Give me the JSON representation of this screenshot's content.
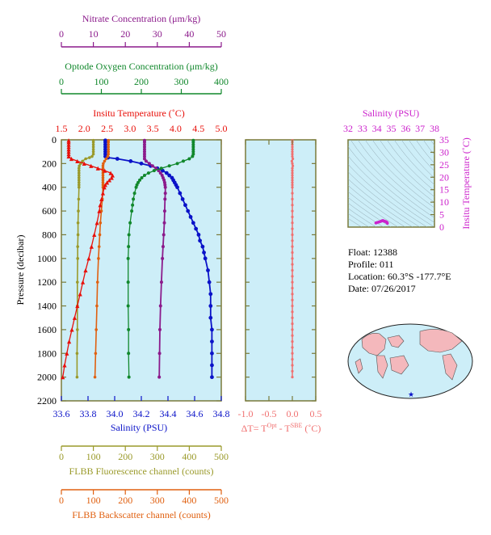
{
  "info": {
    "float": "Float:  12388",
    "profile": "Profile:  011",
    "location": "Location:  60.3°S  -177.7°E",
    "date": "Date:  07/26/2017"
  },
  "colors": {
    "nitrate": "#8b1a8b",
    "oxygen": "#11882c",
    "temperature": "#e8100a",
    "salinity": "#0a12c8",
    "fluorescence": "#9a9a2a",
    "backscatter": "#e06010",
    "salinity_ts": "#cc22cc",
    "delta_t": "#f07070",
    "panel_bg": "#cdeef8",
    "frame": "#7a7a3a"
  },
  "chart_data": [
    {
      "type": "line",
      "name": "profile",
      "ylabel": "Pressure (decibar)",
      "yticks": [
        "0",
        "200",
        "400",
        "600",
        "800",
        "1000",
        "1200",
        "1400",
        "1600",
        "1800",
        "2000",
        "2200"
      ],
      "ylim": [
        0,
        2200
      ],
      "axes": {
        "nitrate": {
          "title": "Nitrate Concentration (μm/kg)",
          "ticks": [
            "0",
            "10",
            "20",
            "30",
            "40",
            "50"
          ],
          "lim": [
            0,
            50
          ]
        },
        "oxygen": {
          "title": "Optode Oxygen Concentration (μm/kg)",
          "ticks": [
            "0",
            "100",
            "200",
            "300",
            "400"
          ],
          "lim": [
            0,
            400
          ]
        },
        "temperature": {
          "title": "Insitu Temperature (˚C)",
          "ticks": [
            "1.5",
            "2.0",
            "2.5",
            "3.0",
            "3.5",
            "4.0",
            "4.5",
            "5.0"
          ],
          "lim": [
            1.5,
            5.0
          ]
        },
        "salinity": {
          "title": "Salinity (PSU)",
          "ticks": [
            "33.6",
            "33.8",
            "34.0",
            "34.2",
            "34.4",
            "34.6",
            "34.8"
          ],
          "lim": [
            33.6,
            34.8
          ]
        },
        "fluorescence": {
          "title": "FLBB Fluorescence channel (counts)",
          "ticks": [
            "0",
            "100",
            "200",
            "300",
            "400",
            "500"
          ],
          "lim": [
            0,
            500
          ]
        },
        "backscatter": {
          "title": "FLBB Backscatter channel (counts)",
          "ticks": [
            "0",
            "100",
            "200",
            "300",
            "400",
            "500"
          ],
          "lim": [
            0,
            500
          ]
        }
      },
      "series": {
        "temperature": {
          "p": [
            5,
            20,
            40,
            60,
            80,
            100,
            120,
            140,
            160,
            180,
            200,
            220,
            240,
            260,
            280,
            300,
            320,
            340,
            360,
            380,
            400,
            450,
            500,
            550,
            600,
            700,
            800,
            900,
            1000,
            1100,
            1200,
            1300,
            1400,
            1500,
            1600,
            1700,
            1800,
            1900,
            2000
          ],
          "v": [
            1.66,
            1.66,
            1.66,
            1.66,
            1.66,
            1.66,
            1.66,
            1.66,
            1.72,
            1.85,
            2.0,
            2.15,
            2.3,
            2.45,
            2.58,
            2.62,
            2.6,
            2.55,
            2.5,
            2.46,
            2.44,
            2.41,
            2.38,
            2.35,
            2.33,
            2.28,
            2.22,
            2.16,
            2.1,
            2.03,
            1.97,
            1.91,
            1.85,
            1.79,
            1.73,
            1.67,
            1.62,
            1.57,
            1.53
          ]
        },
        "salinity": {
          "p": [
            5,
            20,
            40,
            60,
            80,
            100,
            120,
            140,
            150,
            160,
            180,
            200,
            220,
            240,
            260,
            280,
            300,
            320,
            340,
            360,
            380,
            400,
            450,
            500,
            550,
            600,
            650,
            700,
            750,
            800,
            850,
            900,
            950,
            1000,
            1100,
            1200,
            1300,
            1400,
            1500,
            1600,
            1700,
            1800,
            1900,
            2000
          ],
          "v": [
            33.93,
            33.93,
            33.93,
            33.93,
            33.93,
            33.93,
            33.93,
            33.93,
            33.95,
            34.02,
            34.12,
            34.2,
            34.27,
            34.32,
            34.36,
            34.39,
            34.41,
            34.43,
            34.44,
            34.45,
            34.46,
            34.47,
            34.49,
            34.51,
            34.53,
            34.55,
            34.57,
            34.59,
            34.61,
            34.63,
            34.64,
            34.66,
            34.67,
            34.68,
            34.7,
            34.71,
            34.72,
            34.72,
            34.72,
            34.73,
            34.73,
            34.73,
            34.73,
            34.73
          ]
        },
        "oxygen": {
          "p": [
            5,
            20,
            40,
            60,
            80,
            100,
            120,
            140,
            160,
            180,
            200,
            220,
            240,
            260,
            280,
            300,
            320,
            340,
            360,
            380,
            400,
            450,
            500,
            550,
            600,
            700,
            800,
            900,
            1000,
            1200,
            1400,
            1600,
            1800,
            2000
          ],
          "v": [
            330,
            330,
            330,
            330,
            330,
            330,
            330,
            328,
            320,
            305,
            290,
            270,
            250,
            232,
            218,
            208,
            201,
            196,
            192,
            189,
            187,
            183,
            180,
            178,
            176,
            172,
            169,
            168,
            167,
            167,
            167,
            168,
            168,
            169
          ]
        },
        "nitrate": {
          "p": [
            5,
            20,
            40,
            60,
            80,
            100,
            120,
            140,
            160,
            180,
            200,
            220,
            240,
            260,
            280,
            300,
            320,
            340,
            360,
            380,
            400,
            450,
            500,
            600,
            700,
            800,
            900,
            1000,
            1200,
            1400,
            1600,
            1800,
            2000
          ],
          "v": [
            26,
            26,
            26,
            26,
            26,
            26,
            26,
            26,
            26,
            26.5,
            27.5,
            28.5,
            29.6,
            30.4,
            31,
            31.5,
            31.8,
            32.1,
            32.3,
            32.4,
            32.5,
            32.5,
            32.4,
            32.3,
            32.2,
            32,
            31.8,
            31.6,
            31.3,
            31,
            30.8,
            30.7,
            30.6
          ]
        },
        "fluorescence": {
          "p": [
            5,
            20,
            40,
            60,
            80,
            100,
            120,
            140,
            150,
            160,
            180,
            200,
            220,
            240,
            260,
            280,
            300,
            320,
            340,
            360,
            380,
            400,
            500,
            600,
            700,
            800,
            900,
            1000,
            1200,
            1400,
            1600,
            1800,
            2000
          ],
          "v": [
            100,
            100,
            100,
            100,
            100,
            100,
            100,
            96,
            88,
            76,
            66,
            60,
            56,
            55,
            55,
            55,
            55,
            55,
            55,
            55,
            55,
            55,
            54,
            53,
            52,
            52,
            51,
            51,
            50,
            50,
            50,
            49,
            49
          ]
        },
        "backscatter": {
          "p": [
            5,
            20,
            40,
            60,
            80,
            100,
            120,
            140,
            160,
            180,
            200,
            220,
            240,
            260,
            280,
            300,
            320,
            340,
            360,
            380,
            400,
            500,
            600,
            700,
            800,
            900,
            1000,
            1200,
            1400,
            1600,
            1800,
            2000
          ],
          "v": [
            147,
            147,
            147,
            147,
            147,
            147,
            147,
            145,
            140,
            135,
            131,
            130,
            130,
            130,
            130,
            130,
            130,
            130,
            130,
            130,
            130,
            128,
            125,
            122,
            120,
            118,
            116,
            113,
            111,
            109,
            107,
            105
          ]
        }
      }
    },
    {
      "type": "line",
      "name": "delta-t",
      "xlabel": "ΔT= T",
      "xlabel_sup1": "Opt",
      "xlabel_mid": " - T",
      "xlabel_sup2": "SBE",
      "xlabel_end": " (˚C)",
      "xticks": [
        "-1.0",
        "-0.5",
        "0.0",
        "0.5"
      ],
      "xlim": [
        -1.0,
        0.5
      ],
      "ylim": [
        0,
        2200
      ],
      "p": [
        5,
        20,
        40,
        60,
        80,
        100,
        120,
        140,
        160,
        180,
        200,
        220,
        240,
        260,
        280,
        300,
        320,
        340,
        360,
        380,
        400,
        450,
        500,
        550,
        600,
        650,
        700,
        750,
        800,
        850,
        900,
        950,
        1000,
        1050,
        1100,
        1150,
        1200,
        1250,
        1300,
        1350,
        1400,
        1450,
        1500,
        1550,
        1600,
        1650,
        1700,
        1750,
        1800,
        1850,
        1900,
        1950,
        2000
      ],
      "v": [
        0,
        0,
        0,
        0,
        0,
        0,
        0,
        0,
        0.01,
        -0.01,
        0,
        0.01,
        0,
        0,
        0,
        0,
        0,
        0,
        0,
        0,
        0,
        0,
        0,
        0,
        0,
        0,
        0,
        0,
        0,
        0,
        0,
        0,
        0,
        0,
        0,
        0,
        0,
        0,
        0,
        0,
        0,
        0,
        0,
        0,
        0,
        0,
        0,
        0,
        0,
        0,
        0,
        0,
        0
      ]
    },
    {
      "type": "scatter",
      "name": "ts-diagram",
      "xlabel": "Salinity (PSU)",
      "ylabel": "Insitu Temperature (˚C)",
      "xticks": [
        "32",
        "33",
        "34",
        "35",
        "36",
        "37",
        "38"
      ],
      "yticks": [
        "0",
        "5",
        "10",
        "15",
        "20",
        "25",
        "30",
        "35"
      ],
      "xlim": [
        32,
        38
      ],
      "ylim": [
        0,
        35
      ],
      "x": [
        33.93,
        33.96,
        34.02,
        34.12,
        34.2,
        34.27,
        34.33,
        34.38,
        34.42,
        34.45,
        34.47,
        34.5,
        34.53,
        34.56,
        34.6,
        34.64,
        34.67,
        34.7,
        34.72,
        34.73
      ],
      "y": [
        1.66,
        1.7,
        1.85,
        2.0,
        2.15,
        2.3,
        2.45,
        2.58,
        2.6,
        2.55,
        2.46,
        2.4,
        2.35,
        2.3,
        2.22,
        2.12,
        2.0,
        1.85,
        1.7,
        1.53
      ]
    }
  ]
}
